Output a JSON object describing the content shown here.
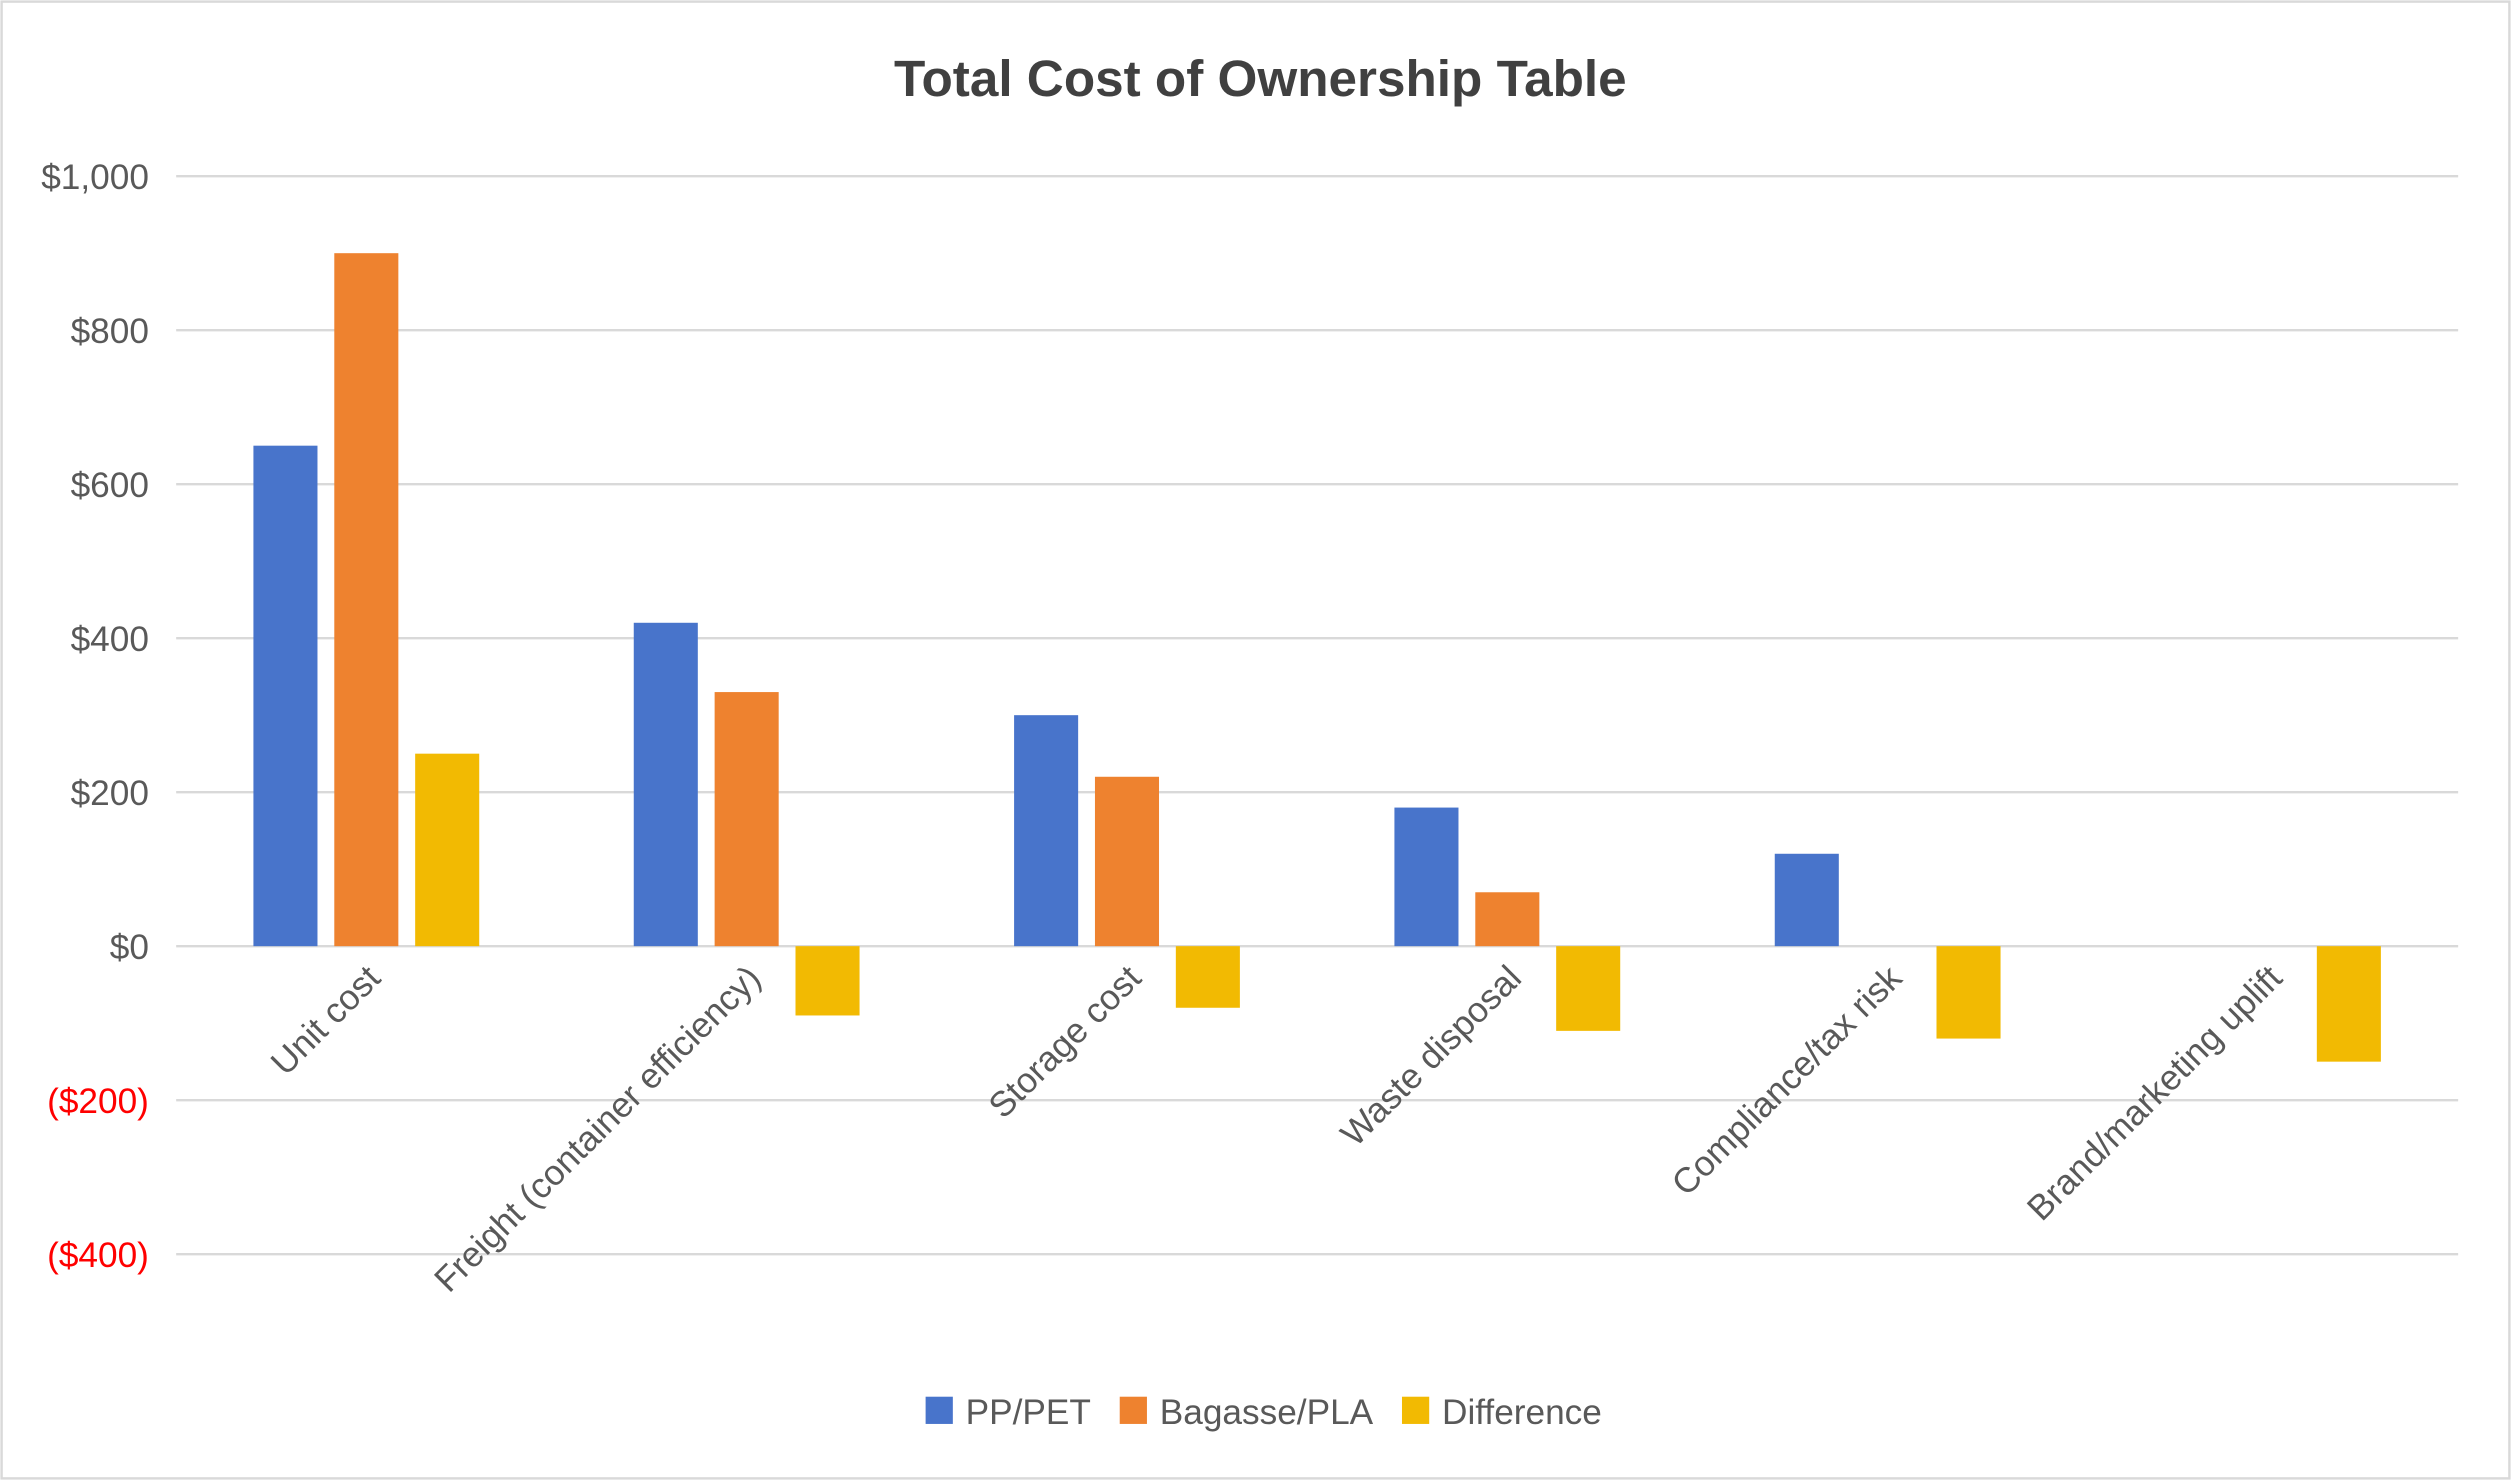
{
  "chart_data": {
    "type": "bar",
    "title": "Total Cost of Ownership Table",
    "xlabel": "",
    "ylabel": "",
    "categories": [
      "Unit cost",
      "Freight (container efficiency)",
      "Storage cost",
      "Waste disposal",
      "Compliance/tax risk",
      "Brand/marketing uplift"
    ],
    "series": [
      {
        "name": "PP/PET",
        "color": "#4874CB",
        "values": [
          650,
          420,
          300,
          180,
          120,
          null
        ]
      },
      {
        "name": "Bagasse/PLA",
        "color": "#EE822F",
        "values": [
          900,
          330,
          220,
          70,
          null,
          null
        ]
      },
      {
        "name": "Difference",
        "color": "#F2BA02",
        "values": [
          250,
          -90,
          -80,
          -110,
          -120,
          -150
        ]
      }
    ],
    "ylim": [
      -400,
      1000
    ],
    "yticks": [
      1000,
      800,
      600,
      400,
      200,
      0,
      -200,
      -400
    ],
    "ytick_labels": [
      "$1,000",
      "$800",
      "$600",
      "$400",
      "$200",
      "$0",
      "($200)",
      "($400)"
    ],
    "negative_label_color": "#FF0000",
    "grid": true,
    "legend": "bottom"
  }
}
